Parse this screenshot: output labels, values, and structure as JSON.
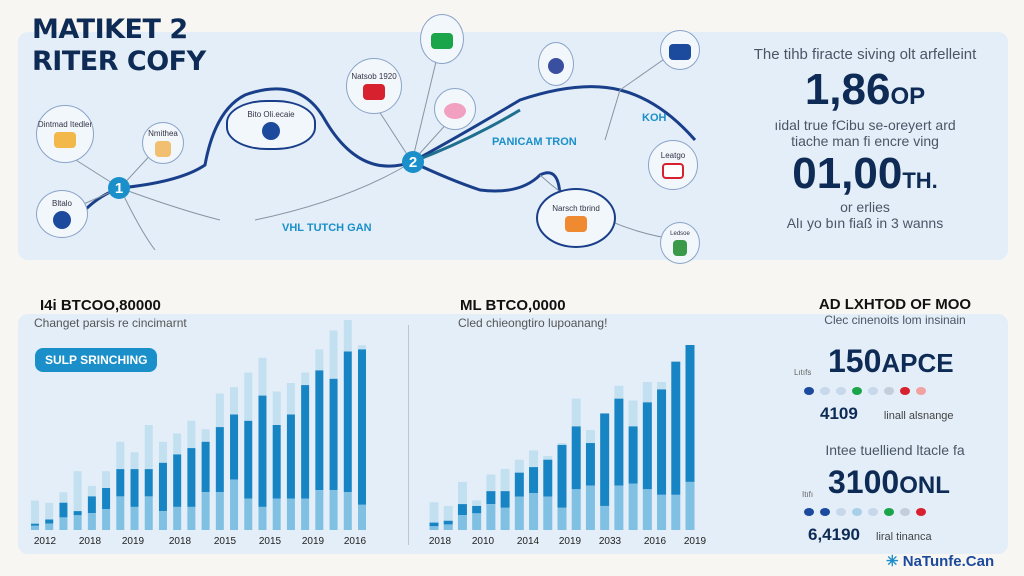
{
  "header": {
    "title_line1": "MATIKET 2",
    "title_line2": "RITER COFY"
  },
  "map": {
    "badges": [
      "1",
      "2"
    ],
    "labels": [
      "VHL TUTCH GAN",
      "PANICAM TRON",
      "KOH"
    ],
    "nodes": [
      "Dintmad Itedler",
      "Nmithea",
      "Bltalo",
      "Bito Oli.ecaie",
      "Natsob 1920",
      "Leatgo",
      "Narsch tbrind",
      "Ledsoe"
    ]
  },
  "stats_top": {
    "intro": "The tihb firacte siving olt arfelleint",
    "value1": "1,86",
    "unit1": "OP",
    "desc": "ıidal true fCibu se-oreyert ard tiache man fi encre ving",
    "value2": "01,00",
    "unit2": "TH.",
    "sub": "or erlies",
    "footer": "Alı yo bın fiaß in 3 wanns"
  },
  "left_chart_header": {
    "title": "I4i BTCOO,80000",
    "subtitle": "Changet parsis re cincimarnt",
    "chip": "SULP SRINCHING"
  },
  "right_chart_header": {
    "title": "ML BTCO,0000",
    "subtitle": "Cled chieongtiro lupoanang!"
  },
  "stats_bottom": {
    "title": "AD LXHTOD OF MOO",
    "subtitle": "Clec cinenoits lom insinain",
    "value1": "150",
    "unit1": "APCE",
    "small1": "Lıtıfs",
    "num1": "4109",
    "label1": "linall alsnange",
    "heading2": "Intee tuelliend ltacle fa",
    "value2": "3100",
    "unit2": "ONL",
    "small2": "Itıfı",
    "num2": "6,4190",
    "label2": "liral tinanca",
    "dots1": [
      "#1c4a9c",
      "#c6d8ea",
      "#c6d8ea",
      "#1aa54a",
      "#c6d8ea",
      "#c2cedb",
      "#d8212f",
      "#f2a0a0"
    ],
    "dots2": [
      "#1c4a9c",
      "#1c4a9c",
      "#c6d8ea",
      "#a8cfe8",
      "#c6d8ea",
      "#1aa54a",
      "#c2cedb",
      "#d8212f"
    ]
  },
  "brand": "NaTunfe.Can",
  "chart_data": [
    {
      "type": "bar",
      "title": "I4i BTCOO,80000",
      "subtitle": "Changet parsis re cincimarnt",
      "xtick_labels": [
        "2012",
        "2018",
        "2019",
        "2018",
        "2015",
        "2015",
        "2019",
        "2016"
      ],
      "ylim": [
        0,
        100
      ],
      "series": [
        {
          "name": "total",
          "values": [
            14,
            13,
            18,
            28,
            21,
            28,
            42,
            37,
            50,
            42,
            46,
            52,
            48,
            65,
            68,
            75,
            82,
            66,
            70,
            75,
            86,
            95,
            100,
            88
          ]
        },
        {
          "name": "main",
          "values": [
            3,
            5,
            13,
            9,
            16,
            20,
            29,
            29,
            29,
            32,
            36,
            39,
            42,
            49,
            55,
            52,
            64,
            50,
            55,
            69,
            76,
            72,
            85,
            86
          ]
        },
        {
          "name": "base",
          "values": [
            2,
            3,
            6,
            7,
            8,
            10,
            16,
            11,
            16,
            9,
            11,
            11,
            18,
            18,
            24,
            15,
            11,
            15,
            15,
            15,
            19,
            19,
            18,
            12
          ]
        }
      ]
    },
    {
      "type": "bar",
      "title": "ML BTCO,0000",
      "subtitle": "Cled chieongtiro lupoanang!",
      "xtick_labels": [
        "2018",
        "2010",
        "2014",
        "2019",
        "2033",
        "2016",
        "2019"
      ],
      "ylim": [
        0,
        100
      ],
      "series": [
        {
          "name": "total",
          "values": [
            15,
            13,
            26,
            16,
            30,
            33,
            38,
            43,
            40,
            47,
            71,
            54,
            63,
            78,
            70,
            80,
            80,
            91,
            100
          ]
        },
        {
          "name": "main",
          "values": [
            4,
            5,
            14,
            13,
            21,
            21,
            31,
            34,
            38,
            46,
            56,
            47,
            63,
            71,
            56,
            69,
            76,
            91,
            100
          ]
        },
        {
          "name": "base",
          "values": [
            2,
            3,
            8,
            9,
            14,
            12,
            18,
            20,
            18,
            12,
            22,
            24,
            13,
            24,
            25,
            22,
            19,
            19,
            26
          ]
        }
      ]
    }
  ]
}
